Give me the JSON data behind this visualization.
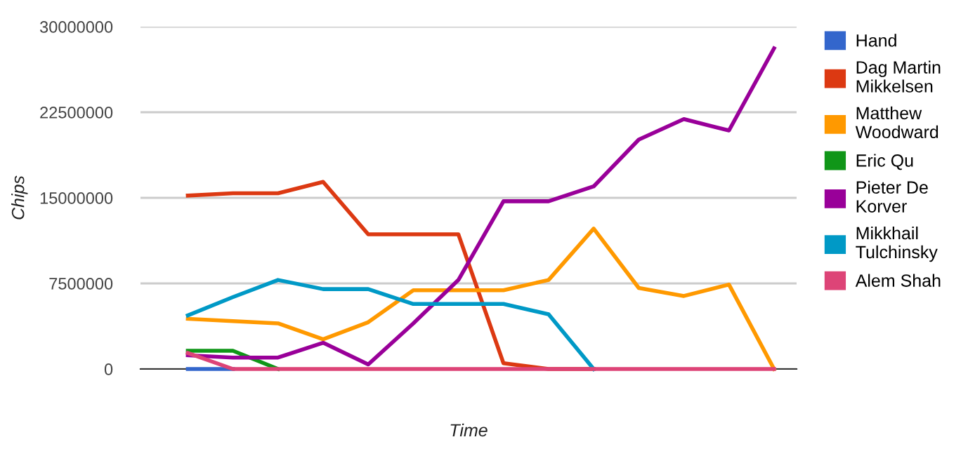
{
  "chart_data": {
    "type": "line",
    "xlabel": "Time",
    "ylabel": "Chips",
    "categories": [
      null,
      null,
      null,
      null,
      null,
      null,
      null,
      null,
      null,
      null,
      null,
      null,
      null,
      null
    ],
    "series": [
      {
        "name": "Hand",
        "color": "#3366cc",
        "values": [
          0,
          0,
          null,
          null,
          null,
          null,
          null,
          null,
          null,
          null,
          null,
          null,
          null,
          null
        ]
      },
      {
        "name": "Dag Martin Mikkelsen",
        "color": "#dc3912",
        "values": [
          15200000,
          15400000,
          15400000,
          16400000,
          11800000,
          11800000,
          11800000,
          500000,
          0,
          0,
          null,
          null,
          null,
          null
        ]
      },
      {
        "name": "Matthew Woodward",
        "color": "#ff9900",
        "values": [
          4400000,
          4200000,
          4000000,
          2600000,
          4100000,
          6900000,
          6900000,
          6900000,
          7800000,
          12300000,
          7100000,
          6400000,
          7400000,
          0
        ]
      },
      {
        "name": "Eric Qu",
        "color": "#109618",
        "values": [
          1600000,
          1600000,
          0,
          null,
          null,
          null,
          null,
          null,
          null,
          null,
          null,
          null,
          null,
          null
        ]
      },
      {
        "name": "Pieter De Korver",
        "color": "#990099",
        "values": [
          1200000,
          1000000,
          1000000,
          2300000,
          400000,
          4000000,
          7800000,
          14700000,
          14700000,
          16000000,
          20100000,
          21900000,
          20900000,
          28100000
        ]
      },
      {
        "name": "Mikkhail Tulchinsky",
        "color": "#0099c6",
        "values": [
          4700000,
          6300000,
          7800000,
          7000000,
          7000000,
          5700000,
          5700000,
          5700000,
          4800000,
          0,
          null,
          null,
          null,
          null
        ]
      },
      {
        "name": "Alem Shah",
        "color": "#dd4477",
        "values": [
          1400000,
          0,
          0,
          0,
          0,
          0,
          0,
          0,
          0,
          0,
          0,
          0,
          0,
          0
        ]
      }
    ],
    "ylim": [
      0,
      30000000
    ],
    "yticks": [
      0,
      7500000,
      15000000,
      22500000,
      30000000
    ],
    "grid": "y",
    "legend": "right",
    "tick_labels": "y",
    "marker": "none",
    "line_style": "solid"
  }
}
